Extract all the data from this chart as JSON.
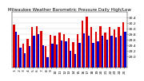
{
  "title": "Milwaukee Weather Barometric Pressure Daily High/Low",
  "background_color": "#ffffff",
  "bar_width": 0.42,
  "dates": [
    "1",
    "2",
    "3",
    "4",
    "5",
    "6",
    "7",
    "8",
    "9",
    "10",
    "11",
    "12",
    "13",
    "14",
    "15",
    "16",
    "17",
    "18",
    "19",
    "20",
    "21",
    "22",
    "23",
    "24",
    "25"
  ],
  "highs": [
    30.12,
    29.75,
    29.45,
    29.62,
    30.05,
    30.08,
    29.9,
    29.35,
    29.75,
    29.72,
    29.85,
    29.78,
    29.65,
    29.5,
    29.8,
    30.28,
    30.42,
    30.05,
    29.88,
    30.08,
    29.85,
    30.05,
    29.95,
    30.05,
    30.22
  ],
  "lows": [
    29.88,
    29.3,
    29.1,
    29.35,
    29.72,
    29.8,
    29.4,
    28.95,
    29.45,
    29.42,
    29.55,
    29.52,
    29.18,
    29.08,
    29.48,
    29.82,
    29.72,
    29.48,
    29.52,
    29.72,
    29.6,
    29.72,
    29.68,
    29.72,
    29.88
  ],
  "high_color": "#dd0000",
  "low_color": "#0000cc",
  "ylim_min": 28.6,
  "ylim_max": 30.6,
  "ytick_vals": [
    29.0,
    29.2,
    29.4,
    29.6,
    29.8,
    30.0,
    30.2,
    30.4
  ],
  "title_fontsize": 4.0,
  "tick_fontsize": 3.2,
  "label_fontsize": 3.2
}
